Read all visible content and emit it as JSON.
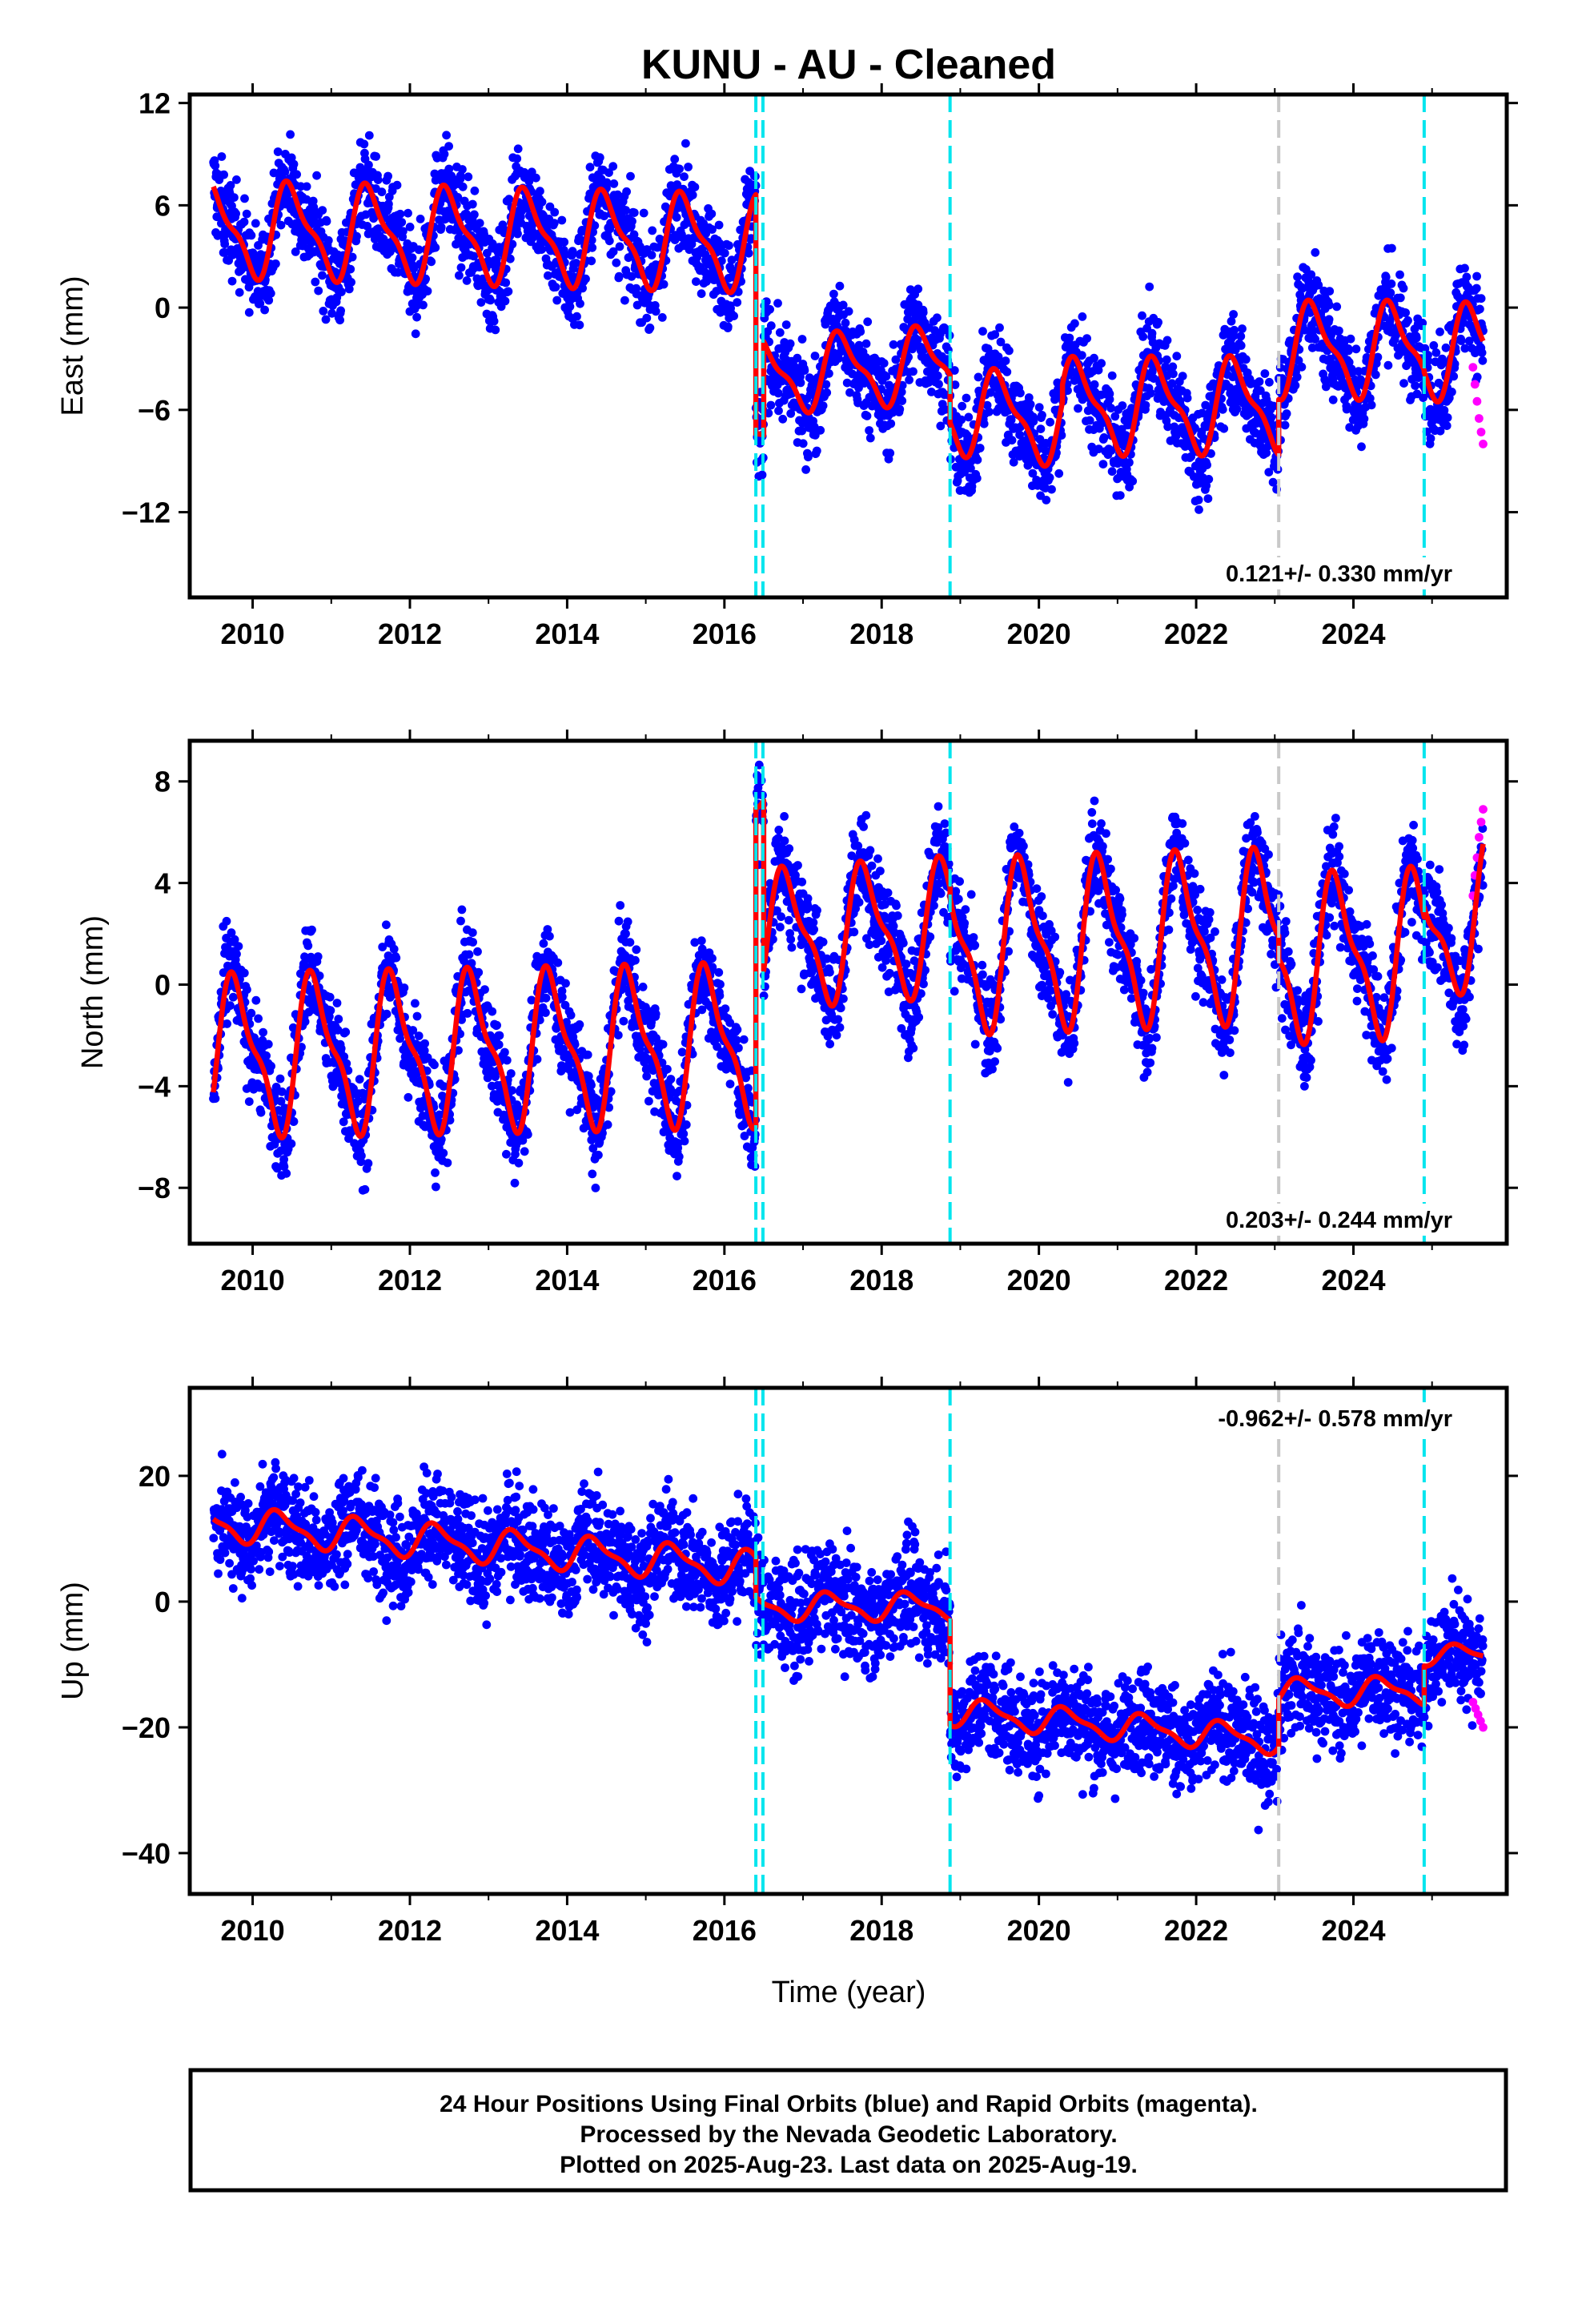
{
  "title": "KUNU  - AU - Cleaned",
  "xlabel": "Time (year)",
  "footer": {
    "line1": "24 Hour Positions Using Final Orbits (blue) and Rapid Orbits (magenta).",
    "line2": "Processed by the Nevada Geodetic Laboratory.",
    "line3": "Plotted on 2025-Aug-23. Last data on 2025-Aug-19."
  },
  "colors": {
    "final_orbits": "#0000ff",
    "rapid_orbits": "#ff00ff",
    "model": "#ff0000",
    "equipment_change": "#00e5ee",
    "earthquake": "#c8c8c8"
  },
  "chart_data": [
    {
      "type": "scatter",
      "ylabel": "East (mm)",
      "xlim": [
        2009.2,
        2025.95
      ],
      "ylim": [
        -17,
        12.5
      ],
      "xticks": [
        2010,
        2012,
        2014,
        2016,
        2018,
        2020,
        2022,
        2024
      ],
      "yticks": [
        -12,
        -6,
        0,
        6,
        12
      ],
      "rate": "0.121+/- 0.330 mm/yr",
      "rate_position": "bottom-right",
      "vlines": [
        {
          "x": 2016.4,
          "color": "cyan"
        },
        {
          "x": 2016.49,
          "color": "cyan"
        },
        {
          "x": 2018.87,
          "color": "cyan"
        },
        {
          "x": 2023.05,
          "color": "gray"
        },
        {
          "x": 2024.9,
          "color": "cyan"
        }
      ],
      "segments": [
        {
          "start": 2009.5,
          "end": 2016.4,
          "offset": 4.6,
          "trend": -0.12,
          "annual": 2.5,
          "phase": 0.25
        },
        {
          "start": 2016.4,
          "end": 2016.5,
          "offset": -8.0,
          "trend": 0,
          "annual": 0.5,
          "phase": 0.25
        },
        {
          "start": 2016.5,
          "end": 2018.87,
          "offset": -4.0,
          "trend": 0.3,
          "annual": 2.0,
          "phase": 0.25
        },
        {
          "start": 2018.87,
          "end": 2020.3,
          "offset": -6.0,
          "trend": -0.5,
          "annual": 2.3,
          "phase": 0.25
        },
        {
          "start": 2020.3,
          "end": 2023.05,
          "offset": -5.8,
          "trend": 0.02,
          "annual": 2.5,
          "phase": 0.25
        },
        {
          "start": 2023.05,
          "end": 2024.9,
          "offset": -2.5,
          "trend": 0.0,
          "annual": 2.5,
          "phase": 0.25
        },
        {
          "start": 2024.9,
          "end": 2025.65,
          "offset": -2.6,
          "trend": 0.0,
          "annual": 2.5,
          "phase": 0.25
        }
      ],
      "noise": 1.4,
      "rapid": {
        "start": 2025.52,
        "end": 2025.65,
        "values": [
          -3.5,
          -4.5,
          -5.5,
          -6.5,
          -7.3,
          -8.0
        ]
      }
    },
    {
      "type": "scatter",
      "ylabel": "North (mm)",
      "xlim": [
        2009.2,
        2025.95
      ],
      "ylim": [
        -10.2,
        9.6
      ],
      "xticks": [
        2010,
        2012,
        2014,
        2016,
        2018,
        2020,
        2022,
        2024
      ],
      "yticks": [
        -8,
        -4,
        0,
        4,
        8
      ],
      "rate": "0.203+/- 0.244 mm/yr",
      "rate_position": "bottom-right",
      "vlines": [
        {
          "x": 2016.4,
          "color": "cyan"
        },
        {
          "x": 2016.49,
          "color": "cyan"
        },
        {
          "x": 2018.87,
          "color": "cyan"
        },
        {
          "x": 2023.05,
          "color": "gray"
        },
        {
          "x": 2024.9,
          "color": "cyan"
        }
      ],
      "segments": [
        {
          "start": 2009.5,
          "end": 2016.4,
          "offset": -2.8,
          "trend": 0.06,
          "annual": 2.8,
          "phase": 0.55
        },
        {
          "start": 2016.4,
          "end": 2016.5,
          "offset": 7.5,
          "trend": 0,
          "annual": 0.5,
          "phase": 0.55
        },
        {
          "start": 2016.5,
          "end": 2018.87,
          "offset": 1.8,
          "trend": 0.2,
          "annual": 2.4,
          "phase": 0.55
        },
        {
          "start": 2018.87,
          "end": 2023.05,
          "offset": 1.5,
          "trend": 0.1,
          "annual": 3.0,
          "phase": 0.55
        },
        {
          "start": 2023.05,
          "end": 2024.9,
          "offset": 1.0,
          "trend": 0.15,
          "annual": 2.9,
          "phase": 0.55
        },
        {
          "start": 2024.9,
          "end": 2025.65,
          "offset": 1.8,
          "trend": 1.8,
          "annual": 2.6,
          "phase": 0.55
        }
      ],
      "noise": 1.0,
      "rapid": {
        "start": 2025.52,
        "end": 2025.65,
        "values": [
          3.5,
          4.3,
          5.0,
          5.8,
          6.4,
          6.9
        ]
      }
    },
    {
      "type": "scatter",
      "ylabel": "Up (mm)",
      "xlim": [
        2009.2,
        2025.95
      ],
      "ylim": [
        -46.5,
        34
      ],
      "xticks": [
        2010,
        2012,
        2014,
        2016,
        2018,
        2020,
        2022,
        2024
      ],
      "yticks": [
        -40,
        -20,
        0,
        20
      ],
      "rate": "-0.962+/- 0.578 mm/yr",
      "rate_position": "top-right",
      "vlines": [
        {
          "x": 2016.4,
          "color": "cyan"
        },
        {
          "x": 2016.49,
          "color": "cyan"
        },
        {
          "x": 2018.87,
          "color": "cyan"
        },
        {
          "x": 2023.05,
          "color": "gray"
        },
        {
          "x": 2024.9,
          "color": "cyan"
        }
      ],
      "segments": [
        {
          "start": 2009.5,
          "end": 2016.4,
          "offset": 12.5,
          "trend": -1.05,
          "annual": 2.5,
          "phase": 0.1
        },
        {
          "start": 2016.4,
          "end": 2018.87,
          "offset": -0.8,
          "trend": 0.0,
          "annual": 2.0,
          "phase": 0.1
        },
        {
          "start": 2018.87,
          "end": 2023.05,
          "offset": -17.5,
          "trend": -1.1,
          "annual": 2.0,
          "phase": 0.1
        },
        {
          "start": 2023.05,
          "end": 2024.9,
          "offset": -14.5,
          "trend": 0.2,
          "annual": 2.0,
          "phase": 0.1
        },
        {
          "start": 2024.9,
          "end": 2025.65,
          "offset": -8.5,
          "trend": 0.0,
          "annual": 1.5,
          "phase": 0.1
        }
      ],
      "noise": 4.2,
      "rapid": {
        "start": 2025.52,
        "end": 2025.65,
        "values": [
          -16,
          -17,
          -18,
          -19,
          -20
        ]
      }
    }
  ]
}
